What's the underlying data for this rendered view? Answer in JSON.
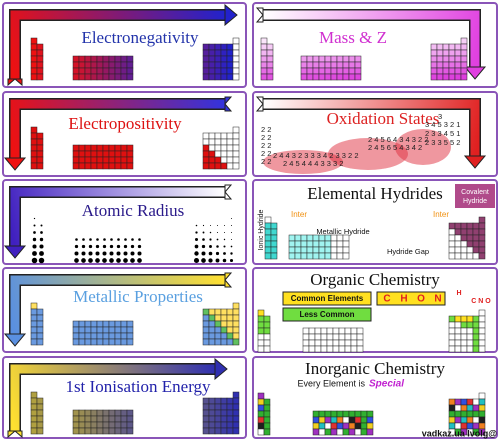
{
  "panels": [
    {
      "title": "Electronegativity"
    },
    {
      "title": "Mass & Z"
    },
    {
      "title": "Electropositivity"
    },
    {
      "title": "Oxidation States",
      "numbers": [
        "3",
        "3 4 5 3 2 1",
        "2 3 3 4 5 1",
        "2 3 3 5 5 2",
        "2 2",
        "2 2",
        "2 2",
        "2 2",
        "2 2",
        "2 4 5 6 4 3 4 3 2 2",
        "2 4 5 6 5 4 3 4 2",
        "2 4 4 3 2 3 3 3 4 2 3 3 2 2",
        "2 4 5 4 4 4 3 3 3 2"
      ]
    },
    {
      "title": "Atomic Radius"
    },
    {
      "title": "Elemental Hydrides",
      "labels": [
        "Covalent",
        "Hydride",
        "Ionic Hydride",
        "Inter",
        "Metallic Hydride",
        "Inter",
        "Hydride Gap"
      ]
    },
    {
      "title": "Metallic Properties"
    },
    {
      "title": "Organic Chemistry",
      "labels": [
        "Common Elements",
        "Less Common",
        "C",
        "H",
        "O",
        "N",
        "H",
        "C N O"
      ]
    },
    {
      "title": "1st Ionisation Energy"
    },
    {
      "title": "Inorganic Chemistry",
      "labels": [
        "Every Element is",
        "Special"
      ]
    }
  ],
  "watermark": "vadkaz.ua lvolg@"
}
